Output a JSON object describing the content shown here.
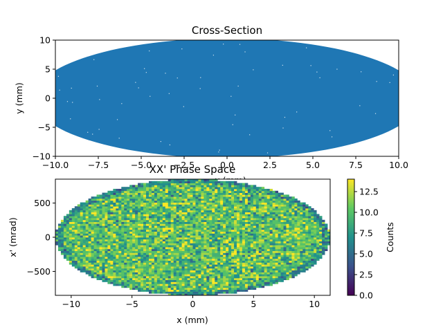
{
  "chart_data": [
    {
      "type": "scatter",
      "title": "Cross-Section",
      "xlabel": "x (mm)",
      "ylabel": "y (mm)",
      "xlim": [
        -10,
        10
      ],
      "ylim": [
        -10,
        10
      ],
      "xticks": [
        -10.0,
        -7.5,
        -5.0,
        -2.5,
        0.0,
        2.5,
        5.0,
        7.5,
        10.0
      ],
      "yticks": [
        -10,
        -5,
        0,
        5,
        10
      ],
      "grid": false,
      "series_color": "#1f77b4",
      "distribution": {
        "shape": "uniform ellipse",
        "center": [
          0,
          0
        ],
        "x_semi_axis": 11.3,
        "y_semi_axis": 10.3
      }
    },
    {
      "type": "heatmap",
      "title": "XX' Phase Space",
      "xlabel": "x (mm)",
      "ylabel": "x' (mrad)",
      "xlim": [
        -11.3,
        11.3
      ],
      "ylim": [
        -850,
        850
      ],
      "xticks": [
        -10,
        -5,
        0,
        5,
        10
      ],
      "yticks": [
        -500,
        0,
        500
      ],
      "grid": false,
      "colormap": "viridis",
      "colorbar": {
        "label": "Counts",
        "range": [
          0.0,
          14.0
        ],
        "ticks": [
          0.0,
          2.5,
          5.0,
          7.5,
          10.0,
          12.5
        ]
      },
      "distribution": {
        "shape": "uniform ellipse",
        "center": [
          0,
          0
        ],
        "x_semi_axis": 11.3,
        "xp_semi_axis": 850,
        "typical_counts": 10
      }
    }
  ]
}
